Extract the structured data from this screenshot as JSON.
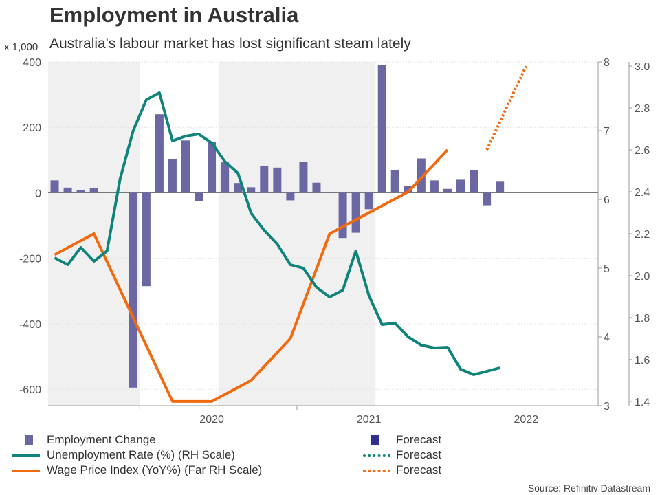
{
  "title": "Employment in Australia",
  "subtitle": "Australia's labour market has lost significant steam lately",
  "unit_label": "x 1,000",
  "source": "Source: Refinitiv Datastream",
  "colors": {
    "bars": "#6b67a3",
    "bars_forecast": "#2e3191",
    "unemployment": "#10847a",
    "wage": "#f26a10",
    "shade": "#f0f0f0",
    "grid": "#e0e0e0"
  },
  "legend": {
    "employment_change": "Employment Change",
    "employment_forecast": "Forecast",
    "unemployment_rate": "Unemployment Rate (%) (RH Scale)",
    "unemployment_forecast": "Forecast",
    "wage_price_index": "Wage Price Index (YoY%) (Far RH Scale)",
    "wage_forecast": "Forecast"
  },
  "chart_data": {
    "type": "bar",
    "title": "Employment in Australia",
    "subtitle": "Australia's labour market has lost significant steam lately",
    "x_tick_labels": [
      "2020",
      "2021",
      "2022"
    ],
    "left_axis": {
      "label": "x 1,000",
      "range": [
        -650,
        400
      ],
      "ticks": [
        -600,
        -400,
        -200,
        0,
        200,
        400
      ]
    },
    "right_axis": {
      "label": "Unemployment Rate (%)",
      "range": [
        3,
        8
      ],
      "ticks": [
        3,
        4,
        5,
        6,
        7,
        8
      ]
    },
    "far_right_axis": {
      "label": "Wage Price Index (YoY%)",
      "range": [
        1.38,
        3.02
      ],
      "ticks": [
        "1.4",
        "1.6",
        "1.8",
        "2.0",
        "2.2",
        "2.4",
        "2.6",
        "2.8",
        "3.0"
      ]
    },
    "shaded_periods": [
      [
        "2019-06",
        "2019-12"
      ],
      [
        "2020-07",
        "2021-06"
      ]
    ],
    "series": [
      {
        "name": "Employment Change",
        "type": "bar",
        "axis": "left",
        "x": [
          "2019-06",
          "2019-07",
          "2019-08",
          "2019-09",
          "2019-10",
          "2019-11",
          "2019-12",
          "2020-01",
          "2020-02",
          "2020-03",
          "2020-04",
          "2020-05",
          "2020-06",
          "2020-07",
          "2020-08",
          "2020-09",
          "2020-10",
          "2020-11",
          "2020-12",
          "2021-01",
          "2021-02",
          "2021-03",
          "2021-04",
          "2021-05",
          "2021-06",
          "2021-07",
          "2021-08",
          "2021-09",
          "2021-10",
          "2021-11",
          "2021-12",
          "2022-01",
          "2022-02",
          "2022-03",
          "2022-04",
          "2022-05",
          "2022-06",
          "2022-07",
          "2022-08",
          "2022-09"
        ],
        "values": [
          38,
          16,
          8,
          15,
          null,
          null,
          -595,
          -285,
          240,
          104,
          160,
          -25,
          155,
          93,
          30,
          17,
          83,
          77,
          -23,
          95,
          31,
          2,
          -138,
          -122,
          -50,
          390,
          70,
          20,
          105,
          38,
          12,
          40,
          70,
          -38,
          34,
          null,
          null,
          null,
          null,
          null
        ]
      },
      {
        "name": "Unemployment Rate (%) (RH Scale)",
        "type": "line",
        "axis": "right",
        "x": [
          "2019-06",
          "2019-07",
          "2019-08",
          "2019-09",
          "2019-10",
          "2019-11",
          "2019-12",
          "2020-01",
          "2020-02",
          "2020-03",
          "2020-04",
          "2020-05",
          "2020-06",
          "2020-07",
          "2020-08",
          "2020-09",
          "2020-10",
          "2020-11",
          "2020-12",
          "2021-01",
          "2021-02",
          "2021-03",
          "2021-04",
          "2021-05",
          "2021-06",
          "2021-07",
          "2021-08",
          "2021-09",
          "2021-10",
          "2021-11",
          "2021-12",
          "2022-01",
          "2022-02",
          "2022-03",
          "2022-04",
          "2022-05"
        ],
        "values": [
          5.15,
          5.05,
          5.3,
          5.1,
          5.25,
          6.3,
          7.0,
          7.45,
          7.55,
          6.85,
          6.92,
          6.95,
          6.82,
          6.55,
          6.38,
          5.8,
          5.55,
          5.35,
          5.05,
          5.0,
          4.72,
          4.58,
          4.68,
          5.25,
          4.6,
          4.18,
          4.2,
          4.0,
          3.88,
          3.84,
          3.85,
          3.53,
          3.45,
          3.5,
          3.55,
          null
        ]
      },
      {
        "name": "Wage Price Index (YoY%) (Far RH Scale)",
        "type": "line",
        "axis": "far_right",
        "x": [
          "2019-06",
          "2019-09",
          "2019-12",
          "2020-03",
          "2020-06",
          "2020-09",
          "2020-12",
          "2021-03",
          "2021-06",
          "2021-09",
          "2021-12",
          "2022-03"
        ],
        "values": [
          2.1,
          2.2,
          1.8,
          1.4,
          1.4,
          1.5,
          1.7,
          2.2,
          2.3,
          2.4,
          2.6,
          null
        ]
      },
      {
        "name": "Forecast",
        "type": "dotted-line",
        "axis": "far_right",
        "x": [
          "2022-03",
          "2022-06"
        ],
        "values": [
          2.6,
          3.0
        ]
      }
    ]
  }
}
